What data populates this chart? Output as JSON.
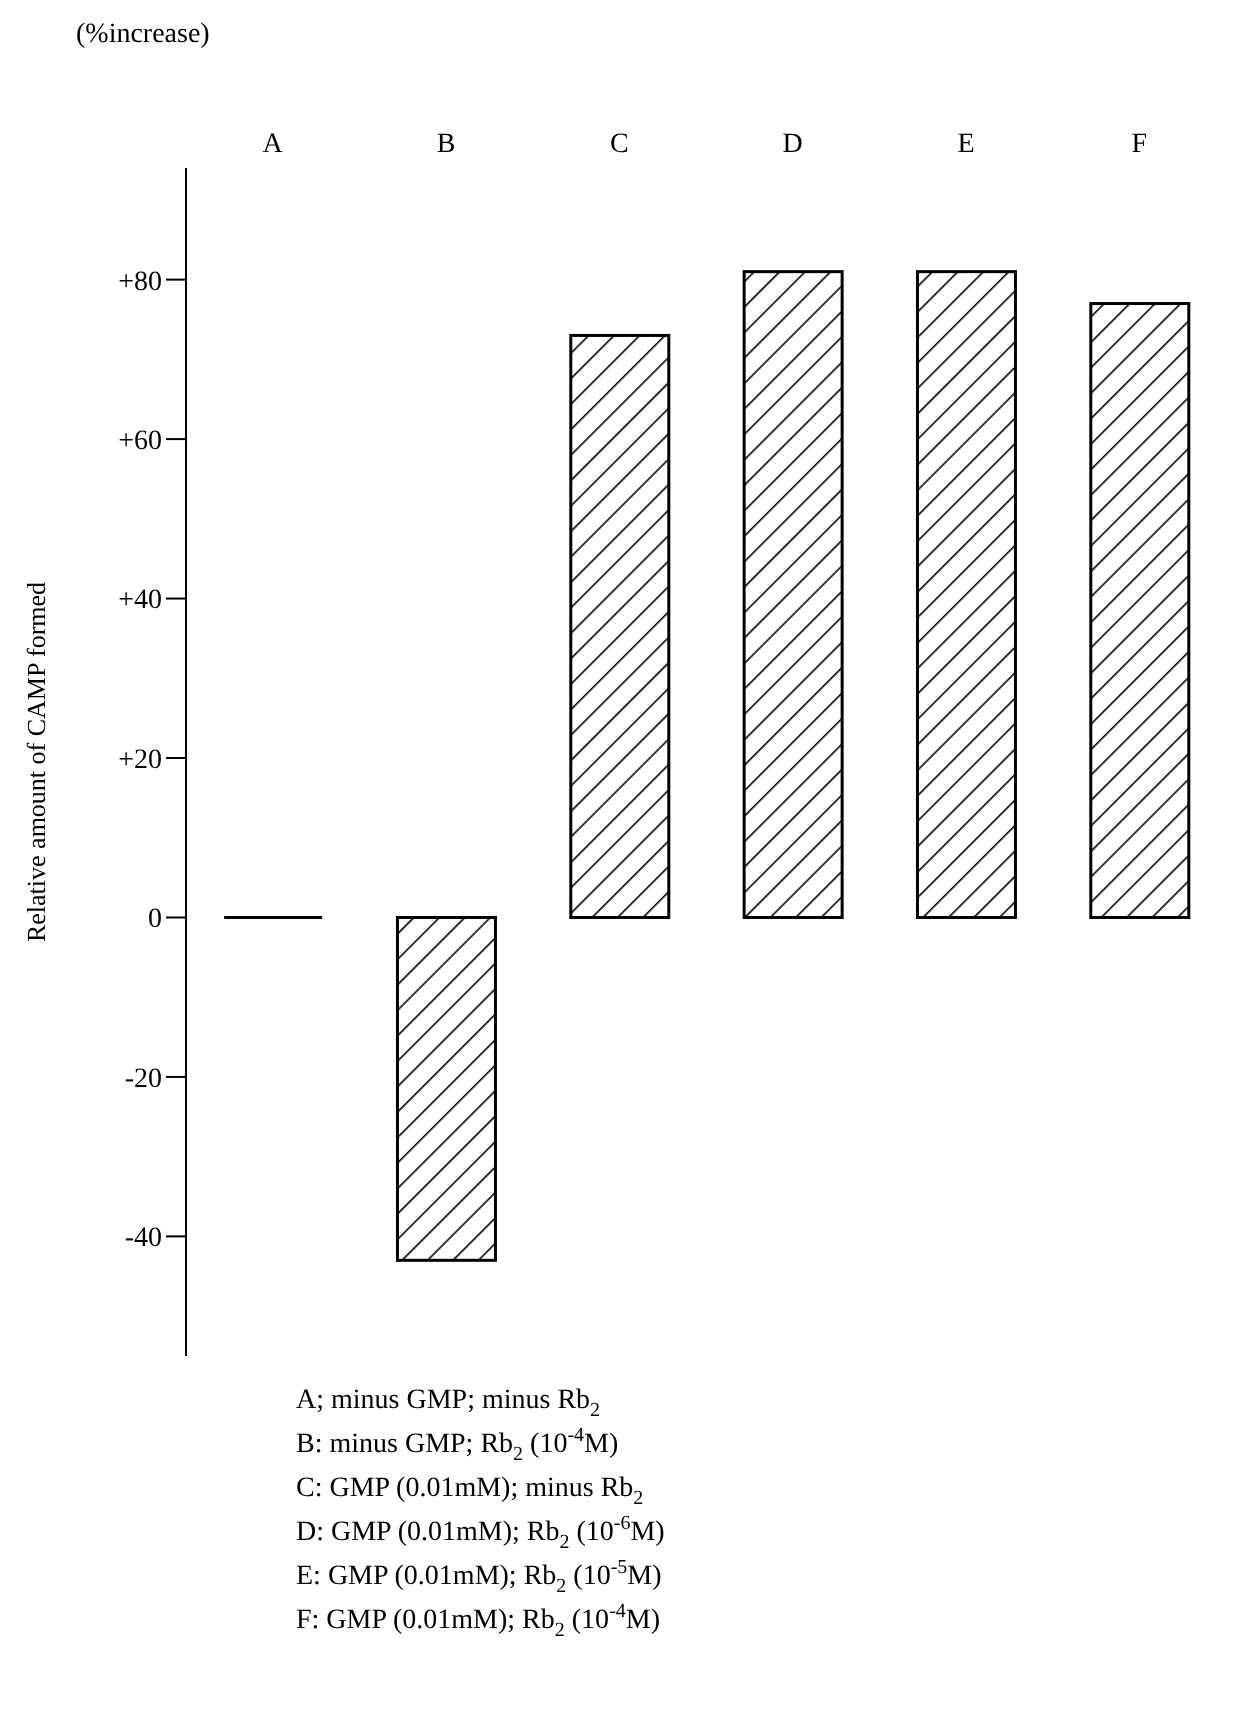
{
  "chart_data": {
    "type": "bar",
    "ylabel": "Relative amount of CAMP formed",
    "categories": [
      "A",
      "B",
      "C",
      "D",
      "E",
      "F"
    ],
    "values": [
      0,
      -43,
      73,
      81,
      81,
      77
    ],
    "color": "#000000",
    "ylim": [
      -55,
      94
    ],
    "yticks": [
      {
        "value": 80,
        "label": "+80"
      },
      {
        "value": 60,
        "label": "+60"
      },
      {
        "value": 40,
        "label": "+40"
      },
      {
        "value": 20,
        "label": "+20"
      },
      0,
      -20,
      -40
    ],
    "grid": false,
    "legend": false,
    "annotations": [
      "(%increase)",
      "A;  minus GMP; minus Rb$_{2}$",
      "B: minus GMP; Rb$_{2}$ (10$^{-4}$M)",
      "C: GMP (0.01mM); minus Rb$_{2}$",
      "D: GMP (0.01mM); Rb$_{2}$  (10$^{-6}$M)",
      "E: GMP (0.01mM); Rb$_{2}$ (10$^{-5}$M)",
      "F: GMP (0.01mM); Rb$_{2}$ (10$^{-4}$M)"
    ]
  }
}
